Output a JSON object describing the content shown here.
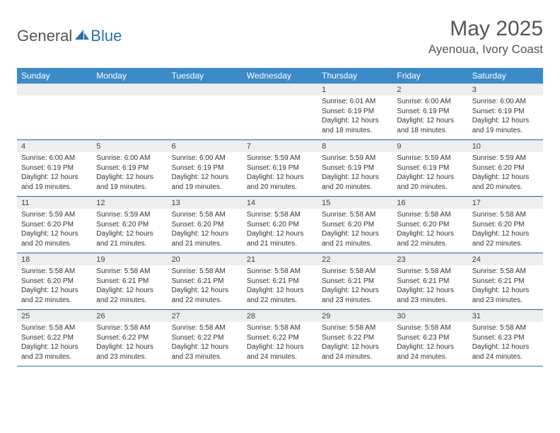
{
  "brand": {
    "general": "General",
    "blue": "Blue"
  },
  "title": "May 2025",
  "location": "Ayenoua, Ivory Coast",
  "colors": {
    "header_bg": "#3b8bc9",
    "header_text": "#ffffff",
    "daynum_bg": "#eeeeee",
    "row_border": "#3b6fa0",
    "text": "#333333",
    "logo_blue": "#2f6fb0"
  },
  "weekdays": [
    "Sunday",
    "Monday",
    "Tuesday",
    "Wednesday",
    "Thursday",
    "Friday",
    "Saturday"
  ],
  "weeks": [
    [
      null,
      null,
      null,
      null,
      {
        "n": "1",
        "sr": "6:01 AM",
        "ss": "6:19 PM",
        "dl": "12 hours and 18 minutes."
      },
      {
        "n": "2",
        "sr": "6:00 AM",
        "ss": "6:19 PM",
        "dl": "12 hours and 18 minutes."
      },
      {
        "n": "3",
        "sr": "6:00 AM",
        "ss": "6:19 PM",
        "dl": "12 hours and 19 minutes."
      }
    ],
    [
      {
        "n": "4",
        "sr": "6:00 AM",
        "ss": "6:19 PM",
        "dl": "12 hours and 19 minutes."
      },
      {
        "n": "5",
        "sr": "6:00 AM",
        "ss": "6:19 PM",
        "dl": "12 hours and 19 minutes."
      },
      {
        "n": "6",
        "sr": "6:00 AM",
        "ss": "6:19 PM",
        "dl": "12 hours and 19 minutes."
      },
      {
        "n": "7",
        "sr": "5:59 AM",
        "ss": "6:19 PM",
        "dl": "12 hours and 20 minutes."
      },
      {
        "n": "8",
        "sr": "5:59 AM",
        "ss": "6:19 PM",
        "dl": "12 hours and 20 minutes."
      },
      {
        "n": "9",
        "sr": "5:59 AM",
        "ss": "6:19 PM",
        "dl": "12 hours and 20 minutes."
      },
      {
        "n": "10",
        "sr": "5:59 AM",
        "ss": "6:20 PM",
        "dl": "12 hours and 20 minutes."
      }
    ],
    [
      {
        "n": "11",
        "sr": "5:59 AM",
        "ss": "6:20 PM",
        "dl": "12 hours and 20 minutes."
      },
      {
        "n": "12",
        "sr": "5:59 AM",
        "ss": "6:20 PM",
        "dl": "12 hours and 21 minutes."
      },
      {
        "n": "13",
        "sr": "5:58 AM",
        "ss": "6:20 PM",
        "dl": "12 hours and 21 minutes."
      },
      {
        "n": "14",
        "sr": "5:58 AM",
        "ss": "6:20 PM",
        "dl": "12 hours and 21 minutes."
      },
      {
        "n": "15",
        "sr": "5:58 AM",
        "ss": "6:20 PM",
        "dl": "12 hours and 21 minutes."
      },
      {
        "n": "16",
        "sr": "5:58 AM",
        "ss": "6:20 PM",
        "dl": "12 hours and 22 minutes."
      },
      {
        "n": "17",
        "sr": "5:58 AM",
        "ss": "6:20 PM",
        "dl": "12 hours and 22 minutes."
      }
    ],
    [
      {
        "n": "18",
        "sr": "5:58 AM",
        "ss": "6:20 PM",
        "dl": "12 hours and 22 minutes."
      },
      {
        "n": "19",
        "sr": "5:58 AM",
        "ss": "6:21 PM",
        "dl": "12 hours and 22 minutes."
      },
      {
        "n": "20",
        "sr": "5:58 AM",
        "ss": "6:21 PM",
        "dl": "12 hours and 22 minutes."
      },
      {
        "n": "21",
        "sr": "5:58 AM",
        "ss": "6:21 PM",
        "dl": "12 hours and 22 minutes."
      },
      {
        "n": "22",
        "sr": "5:58 AM",
        "ss": "6:21 PM",
        "dl": "12 hours and 23 minutes."
      },
      {
        "n": "23",
        "sr": "5:58 AM",
        "ss": "6:21 PM",
        "dl": "12 hours and 23 minutes."
      },
      {
        "n": "24",
        "sr": "5:58 AM",
        "ss": "6:21 PM",
        "dl": "12 hours and 23 minutes."
      }
    ],
    [
      {
        "n": "25",
        "sr": "5:58 AM",
        "ss": "6:22 PM",
        "dl": "12 hours and 23 minutes."
      },
      {
        "n": "26",
        "sr": "5:58 AM",
        "ss": "6:22 PM",
        "dl": "12 hours and 23 minutes."
      },
      {
        "n": "27",
        "sr": "5:58 AM",
        "ss": "6:22 PM",
        "dl": "12 hours and 23 minutes."
      },
      {
        "n": "28",
        "sr": "5:58 AM",
        "ss": "6:22 PM",
        "dl": "12 hours and 24 minutes."
      },
      {
        "n": "29",
        "sr": "5:58 AM",
        "ss": "6:22 PM",
        "dl": "12 hours and 24 minutes."
      },
      {
        "n": "30",
        "sr": "5:58 AM",
        "ss": "6:23 PM",
        "dl": "12 hours and 24 minutes."
      },
      {
        "n": "31",
        "sr": "5:58 AM",
        "ss": "6:23 PM",
        "dl": "12 hours and 24 minutes."
      }
    ]
  ],
  "labels": {
    "sunrise": "Sunrise:",
    "sunset": "Sunset:",
    "daylight": "Daylight:"
  }
}
